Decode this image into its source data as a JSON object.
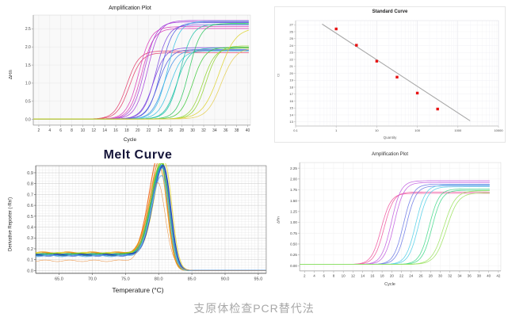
{
  "caption": "支原体检查PCR替代法",
  "chart_data": [
    {
      "type": "amplification",
      "title": "Amplification Plot",
      "xlabel": "Cycle",
      "ylabel": "ΔRn",
      "x_range": [
        1,
        40.5
      ],
      "x_ticks": [
        2,
        4,
        6,
        8,
        10,
        12,
        14,
        16,
        18,
        20,
        22,
        24,
        26,
        28,
        30,
        32,
        34,
        36,
        38,
        40
      ],
      "y_range": [
        -0.16,
        2.88
      ],
      "y_ticks": [
        0.0,
        0.5,
        1.0,
        1.5,
        2.0,
        2.5
      ],
      "y_tick_labels": [
        "0.0",
        "0.5",
        "1.0",
        "1.5",
        "2.0",
        "2.5"
      ],
      "curve_model": "sigmoid",
      "baseline": 0.01,
      "slope": 1.1,
      "series": [
        {
          "color": "#e23a68",
          "ct": 18.0,
          "plateau": 1.88
        },
        {
          "color": "#e23a68",
          "ct": 18.5,
          "plateau": 1.83
        },
        {
          "color": "#d938b8",
          "ct": 20.2,
          "plateau": 2.55
        },
        {
          "color": "#d938b8",
          "ct": 20.7,
          "plateau": 2.5
        },
        {
          "color": "#a43ad9",
          "ct": 21.2,
          "plateau": 2.68
        },
        {
          "color": "#a43ad9",
          "ct": 21.8,
          "plateau": 2.72
        },
        {
          "color": "#7b45e0",
          "ct": 22.8,
          "plateau": 1.97
        },
        {
          "color": "#7b45e0",
          "ct": 23.3,
          "plateau": 2.6
        },
        {
          "color": "#4a56e0",
          "ct": 23.7,
          "plateau": 1.92
        },
        {
          "color": "#4a56e0",
          "ct": 24.2,
          "plateau": 2.66
        },
        {
          "color": "#3f8ee8",
          "ct": 24.7,
          "plateau": 1.9
        },
        {
          "color": "#35c0e4",
          "ct": 25.4,
          "plateau": 2.7
        },
        {
          "color": "#35c0e4",
          "ct": 25.9,
          "plateau": 1.88
        },
        {
          "color": "#1fc2a8",
          "ct": 27.1,
          "plateau": 1.96
        },
        {
          "color": "#1fc2a8",
          "ct": 27.7,
          "plateau": 2.62
        },
        {
          "color": "#2cc45c",
          "ct": 29.3,
          "plateau": 2.64
        },
        {
          "color": "#3ec838",
          "ct": 30.0,
          "plateau": 1.98
        },
        {
          "color": "#8ed32b",
          "ct": 31.8,
          "plateau": 1.96
        },
        {
          "color": "#8ed32b",
          "ct": 32.4,
          "plateau": 2.02
        },
        {
          "color": "#ddd22e",
          "ct": 34.8,
          "plateau": 2.52,
          "k": 1.5
        },
        {
          "color": "#e4ce52",
          "ct": 35.2,
          "plateau": 1.97,
          "k": 1.3
        }
      ]
    },
    {
      "type": "standard",
      "title": "Standard Curve",
      "xlabel": "Quantity",
      "ylabel": "Ct",
      "x_log_range": [
        -1,
        4
      ],
      "x_tick_labels": [
        "0.1",
        "1",
        "10",
        "100",
        "1000",
        "10000"
      ],
      "y_range": [
        12.4,
        27.6
      ],
      "y_ticks": [
        13,
        14,
        15,
        16,
        17,
        18,
        19,
        20,
        21,
        22,
        23,
        24,
        25,
        26,
        27
      ],
      "point_color": "#e81212",
      "line_color": "#a8a8a8",
      "points": [
        {
          "quantity": 1,
          "ct": 26.4
        },
        {
          "quantity": 3.16,
          "ct": 24.05
        },
        {
          "quantity": 10,
          "ct": 21.75
        },
        {
          "quantity": 31.6,
          "ct": 19.45
        },
        {
          "quantity": 100,
          "ct": 17.15
        },
        {
          "quantity": 316,
          "ct": 14.85
        }
      ],
      "fit_line": {
        "x1": 0.45,
        "y1": 27.1,
        "x2": 2000,
        "y2": 13.15
      }
    },
    {
      "type": "melt",
      "title": "Melt Curve",
      "xlabel": "Temperature (°C)",
      "ylabel": "Derivative Reporter (-Rn')",
      "x_range": [
        61.5,
        96.2
      ],
      "x_ticks": [
        65,
        70,
        75,
        80,
        85,
        90,
        95
      ],
      "x_tick_labels": [
        "65.0",
        "70.0",
        "75.0",
        "80.0",
        "85.0",
        "90.0",
        "95.0"
      ],
      "y_range": [
        -0.025,
        0.965
      ],
      "y_ticks": [
        0.0,
        0.1,
        0.2,
        0.3,
        0.4,
        0.5,
        0.6,
        0.7,
        0.8,
        0.9
      ],
      "y_tick_labels": [
        "0.0",
        "0.1",
        "0.2",
        "0.3",
        "0.4",
        "0.5",
        "0.6",
        "0.7",
        "0.8",
        "0.9"
      ],
      "curve_model": "peak",
      "series": [
        {
          "color": "#f2600f",
          "peak": 80.15,
          "height": 0.93,
          "base": 0.155
        },
        {
          "color": "#e8821c",
          "peak": 80.3,
          "height": 0.88,
          "base": 0.16
        },
        {
          "color": "#e8a21e",
          "peak": 80.2,
          "height": 0.8,
          "base": 0.165
        },
        {
          "color": "#d8ce20",
          "peak": 80.45,
          "height": 0.86,
          "base": 0.15
        },
        {
          "color": "#e6d84a",
          "peak": 80.9,
          "height": 0.85,
          "base": 0.16
        },
        {
          "color": "#8fce1f",
          "peak": 80.5,
          "height": 0.87,
          "base": 0.155
        },
        {
          "color": "#57c41f",
          "peak": 80.55,
          "height": 0.85,
          "base": 0.15
        },
        {
          "color": "#2bb33a",
          "peak": 80.6,
          "height": 0.84,
          "base": 0.145
        },
        {
          "color": "#27c279",
          "peak": 80.4,
          "height": 0.83,
          "base": 0.15
        },
        {
          "color": "#2e9ad8",
          "peak": 80.6,
          "height": 0.84,
          "base": 0.145
        },
        {
          "color": "#2a56c8",
          "peak": 80.7,
          "height": 0.84,
          "base": 0.14
        },
        {
          "color": "#1f3da8",
          "peak": 80.75,
          "height": 0.83,
          "base": 0.145
        },
        {
          "color": "#3f78dc",
          "peak": 80.65,
          "height": 0.82,
          "base": 0.14
        },
        {
          "color": "#74b8e8",
          "peak": 80.5,
          "height": 0.75,
          "base": 0.135
        },
        {
          "color": "#e87d1e",
          "peak": 79.9,
          "height": 0.72,
          "base": 0.09,
          "drop": 82.9,
          "sw": 0.5
        }
      ]
    },
    {
      "type": "amplification",
      "title": "Amplification Plot",
      "xlabel": "Cycle",
      "ylabel": "ΔRn",
      "x_range": [
        1,
        42.5
      ],
      "x_ticks": [
        2,
        4,
        6,
        8,
        10,
        12,
        14,
        16,
        18,
        20,
        22,
        24,
        26,
        28,
        30,
        32,
        34,
        36,
        38,
        40,
        42
      ],
      "y_range": [
        -0.12,
        2.38
      ],
      "y_ticks": [
        0.0,
        0.25,
        0.5,
        0.75,
        1.0,
        1.25,
        1.5,
        1.75,
        2.0,
        2.25
      ],
      "y_tick_labels": [
        "0.00",
        "0.25",
        "0.50",
        "0.75",
        "1.00",
        "1.25",
        "1.50",
        "1.75",
        "2.00",
        "2.25"
      ],
      "curve_model": "sigmoid",
      "baseline": 0.03,
      "slope": 1.0,
      "series": [
        {
          "color": "#f0579f",
          "ct": 17.8,
          "plateau": 1.64
        },
        {
          "color": "#f0579f",
          "ct": 18.4,
          "plateau": 1.67
        },
        {
          "color": "#c25fe0",
          "ct": 19.9,
          "plateau": 1.93
        },
        {
          "color": "#c25fe0",
          "ct": 20.5,
          "plateau": 1.89
        },
        {
          "color": "#6b7ae6",
          "ct": 22.4,
          "plateau": 1.85
        },
        {
          "color": "#6b7ae6",
          "ct": 23.0,
          "plateau": 1.81
        },
        {
          "color": "#52cfe8",
          "ct": 24.9,
          "plateau": 1.83
        },
        {
          "color": "#52cfe8",
          "ct": 25.5,
          "plateau": 1.79
        },
        {
          "color": "#45d98c",
          "ct": 27.7,
          "plateau": 1.74
        },
        {
          "color": "#45d98c",
          "ct": 28.3,
          "plateau": 1.71
        },
        {
          "color": "#9be25f",
          "ct": 30.7,
          "plateau": 1.7,
          "k": 1.2
        },
        {
          "color": "#9be25f",
          "ct": 31.3,
          "plateau": 1.65,
          "k": 1.2
        }
      ]
    }
  ]
}
